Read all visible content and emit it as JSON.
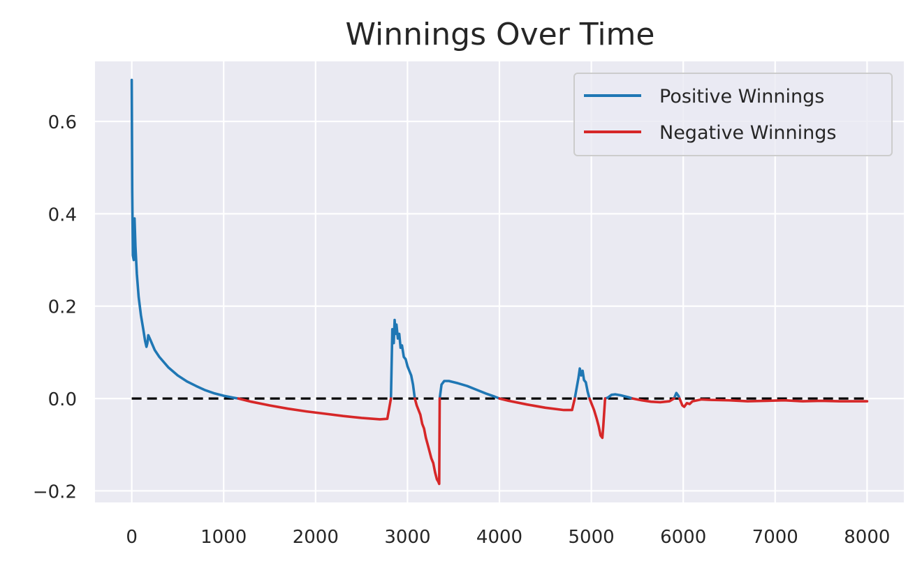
{
  "chart_data": {
    "type": "line",
    "title": "Winnings Over Time",
    "xlabel": "",
    "ylabel": "",
    "xlim": [
      -400,
      8400
    ],
    "ylim": [
      -0.225,
      0.73
    ],
    "xticks": [
      0,
      1000,
      2000,
      3000,
      4000,
      5000,
      6000,
      7000,
      8000
    ],
    "yticks": [
      -0.2,
      0.0,
      0.2,
      0.4,
      0.6
    ],
    "ytick_labels": [
      "−0.2",
      "0.0",
      "0.2",
      "0.4",
      "0.6"
    ],
    "xtick_labels": [
      "0",
      "1000",
      "2000",
      "3000",
      "4000",
      "5000",
      "6000",
      "7000",
      "8000"
    ],
    "grid": true,
    "legend_position": "top-right",
    "colors": {
      "positive": "#1f77b4",
      "negative": "#d62728",
      "zero_line": "#000000",
      "plot_bg": "#eaeaf2",
      "grid": "#ffffff"
    },
    "series": [
      {
        "name": "Positive Winnings",
        "color": "#1f77b4",
        "segments": [
          [
            [
              0,
              0.69
            ],
            [
              5,
              0.45
            ],
            [
              12,
              0.31
            ],
            [
              22,
              0.3
            ],
            [
              30,
              0.39
            ],
            [
              40,
              0.33
            ],
            [
              55,
              0.27
            ],
            [
              75,
              0.22
            ],
            [
              100,
              0.18
            ],
            [
              125,
              0.15
            ],
            [
              145,
              0.125
            ],
            [
              160,
              0.112
            ],
            [
              170,
              0.12
            ],
            [
              180,
              0.137
            ],
            [
              200,
              0.128
            ],
            [
              250,
              0.105
            ],
            [
              300,
              0.09
            ],
            [
              400,
              0.067
            ],
            [
              500,
              0.05
            ],
            [
              600,
              0.037
            ],
            [
              700,
              0.027
            ],
            [
              800,
              0.018
            ],
            [
              900,
              0.011
            ],
            [
              1000,
              0.006
            ],
            [
              1100,
              0.002
            ],
            [
              1160,
              0.0
            ]
          ],
          [
            [
              2820,
              0.0
            ],
            [
              2835,
              0.15
            ],
            [
              2850,
              0.12
            ],
            [
              2860,
              0.17
            ],
            [
              2870,
              0.14
            ],
            [
              2880,
              0.16
            ],
            [
              2895,
              0.13
            ],
            [
              2910,
              0.14
            ],
            [
              2925,
              0.11
            ],
            [
              2940,
              0.115
            ],
            [
              2960,
              0.09
            ],
            [
              2980,
              0.085
            ],
            [
              3000,
              0.07
            ],
            [
              3020,
              0.06
            ],
            [
              3040,
              0.05
            ],
            [
              3060,
              0.03
            ],
            [
              3080,
              0.0
            ]
          ],
          [
            [
              3350,
              0.0
            ],
            [
              3370,
              0.03
            ],
            [
              3400,
              0.038
            ],
            [
              3450,
              0.038
            ],
            [
              3550,
              0.033
            ],
            [
              3650,
              0.027
            ],
            [
              3750,
              0.019
            ],
            [
              3850,
              0.011
            ],
            [
              3950,
              0.004
            ],
            [
              4000,
              0.0
            ]
          ],
          [
            [
              4820,
              0.0
            ],
            [
              4860,
              0.045
            ],
            [
              4875,
              0.065
            ],
            [
              4890,
              0.05
            ],
            [
              4905,
              0.06
            ],
            [
              4920,
              0.04
            ],
            [
              4940,
              0.035
            ],
            [
              4960,
              0.015
            ],
            [
              4980,
              0.0
            ]
          ],
          [
            [
              5150,
              0.0
            ],
            [
              5180,
              0.002
            ],
            [
              5220,
              0.008
            ],
            [
              5260,
              0.009
            ],
            [
              5320,
              0.007
            ],
            [
              5400,
              0.003
            ],
            [
              5450,
              0.0
            ]
          ],
          [
            [
              5900,
              0.0
            ],
            [
              5925,
              0.012
            ],
            [
              5950,
              0.005
            ],
            [
              5960,
              0.0
            ]
          ]
        ]
      },
      {
        "name": "Negative Winnings",
        "color": "#d62728",
        "segments": [
          [
            [
              1160,
              0.0
            ],
            [
              1300,
              -0.007
            ],
            [
              1500,
              -0.015
            ],
            [
              1700,
              -0.022
            ],
            [
              1900,
              -0.028
            ],
            [
              2100,
              -0.033
            ],
            [
              2300,
              -0.038
            ],
            [
              2500,
              -0.042
            ],
            [
              2700,
              -0.045
            ],
            [
              2780,
              -0.044
            ],
            [
              2820,
              0.0
            ]
          ],
          [
            [
              3080,
              0.0
            ],
            [
              3100,
              -0.015
            ],
            [
              3120,
              -0.025
            ],
            [
              3140,
              -0.035
            ],
            [
              3160,
              -0.055
            ],
            [
              3180,
              -0.065
            ],
            [
              3200,
              -0.085
            ],
            [
              3220,
              -0.1
            ],
            [
              3240,
              -0.115
            ],
            [
              3260,
              -0.13
            ],
            [
              3280,
              -0.14
            ],
            [
              3300,
              -0.16
            ],
            [
              3320,
              -0.175
            ],
            [
              3335,
              -0.18
            ],
            [
              3345,
              -0.185
            ],
            [
              3350,
              0.0
            ]
          ],
          [
            [
              4000,
              0.0
            ],
            [
              4100,
              -0.005
            ],
            [
              4300,
              -0.013
            ],
            [
              4500,
              -0.02
            ],
            [
              4700,
              -0.025
            ],
            [
              4790,
              -0.025
            ],
            [
              4820,
              0.0
            ]
          ],
          [
            [
              4980,
              0.0
            ],
            [
              5000,
              -0.01
            ],
            [
              5030,
              -0.025
            ],
            [
              5060,
              -0.045
            ],
            [
              5080,
              -0.06
            ],
            [
              5100,
              -0.08
            ],
            [
              5120,
              -0.085
            ],
            [
              5130,
              -0.06
            ],
            [
              5150,
              0.0
            ]
          ],
          [
            [
              5450,
              0.0
            ],
            [
              5550,
              -0.004
            ],
            [
              5650,
              -0.007
            ],
            [
              5750,
              -0.008
            ],
            [
              5850,
              -0.006
            ],
            [
              5900,
              0.0
            ]
          ],
          [
            [
              5960,
              0.0
            ],
            [
              5990,
              -0.015
            ],
            [
              6010,
              -0.018
            ],
            [
              6040,
              -0.01
            ],
            [
              6070,
              -0.012
            ],
            [
              6100,
              -0.006
            ],
            [
              6200,
              -0.002
            ],
            [
              6300,
              -0.003
            ],
            [
              6500,
              -0.004
            ],
            [
              6700,
              -0.006
            ],
            [
              6900,
              -0.005
            ],
            [
              7100,
              -0.004
            ],
            [
              7300,
              -0.006
            ],
            [
              7500,
              -0.005
            ],
            [
              7700,
              -0.006
            ],
            [
              7900,
              -0.006
            ],
            [
              8000,
              -0.006
            ]
          ]
        ]
      }
    ],
    "reference_line": {
      "y": 0.0,
      "x_start": 0,
      "x_end": 8000,
      "style": "dashed",
      "color": "#000000"
    }
  }
}
